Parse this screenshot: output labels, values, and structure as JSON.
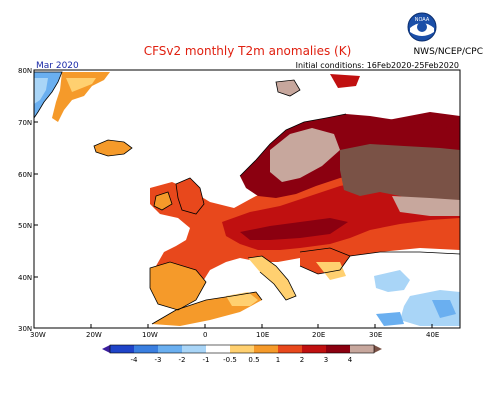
{
  "header": {
    "title": "CFSv2 monthly T2m anomalies (K)",
    "credit": "NWS/NCEP/CPC",
    "month": "Mar 2020",
    "initial_conditions": "Initial conditions: 16Feb2020-25Feb2020",
    "logo_text": "NOAA"
  },
  "axes": {
    "lat_labels": [
      "80N",
      "70N",
      "60N",
      "50N",
      "40N",
      "30N"
    ],
    "lon_labels": [
      "30W",
      "20W",
      "10W",
      "0",
      "10E",
      "20E",
      "30E",
      "40E"
    ]
  },
  "colorbar": {
    "tick_labels": [
      "-4",
      "-3",
      "-2",
      "-1",
      "-0.5",
      "0.5",
      "1",
      "2",
      "3",
      "4"
    ],
    "colors": [
      "#3a1e9e",
      "#1f44c8",
      "#3a7fe0",
      "#6aaff0",
      "#a9d5f7",
      "#ffffff",
      "#ffd070",
      "#f59a2a",
      "#e8481c",
      "#c01010",
      "#8b0010",
      "#c7a79d",
      "#7a5246"
    ]
  },
  "legend_palette": {
    "below_minus4": "#3a1e9e",
    "minus4_minus3": "#1f44c8",
    "minus3_minus2": "#3a7fe0",
    "minus2_minus1": "#6aaff0",
    "minus1_minus0_5": "#a9d5f7",
    "neutral": "#ffffff",
    "p0_5_1": "#ffd070",
    "p1_2": "#f59a2a",
    "p2_3": "#e8481c",
    "p3_4": "#c01010",
    "p4_plus_dark": "#8b0010",
    "p4_plus_light": "#c7a79d",
    "p4_plus_brown": "#7a5246"
  }
}
